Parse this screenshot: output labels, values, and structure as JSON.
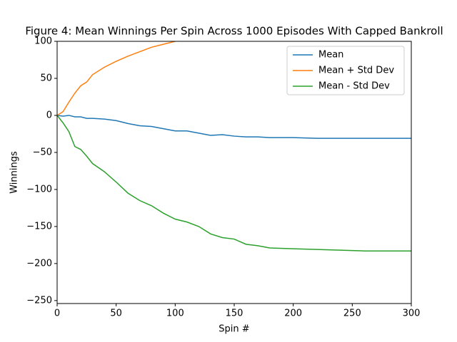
{
  "chart_data": {
    "type": "line",
    "title": "Figure 4: Mean Winnings Per Spin Across 1000 Episodes With Capped Bankroll",
    "x_label": "Spin #",
    "y_label": "Winnings",
    "x": [
      0,
      5,
      10,
      15,
      20,
      25,
      30,
      40,
      50,
      60,
      70,
      80,
      90,
      100,
      110,
      120,
      130,
      140,
      150,
      160,
      170,
      180,
      200,
      220,
      240,
      260,
      280,
      300
    ],
    "series": [
      {
        "name": "Mean",
        "color": "#1f77b4",
        "values": [
          0,
          -1,
          0,
          -2,
          -2,
          -4,
          -4,
          -5,
          -7,
          -11,
          -14,
          -15,
          -18,
          -21,
          -21,
          -24,
          -27,
          -26,
          -28,
          -29,
          -29,
          -30,
          -30,
          -31,
          -31,
          -31,
          -31,
          -31
        ]
      },
      {
        "name": "Mean + Std Dev",
        "color": "#ff7f0e",
        "values": [
          0,
          5,
          18,
          30,
          40,
          45,
          55,
          65,
          73,
          80,
          86,
          92,
          96,
          100,
          null,
          null,
          null,
          null,
          null,
          null,
          null,
          null,
          null,
          null,
          null,
          null,
          null,
          null
        ]
      },
      {
        "name": "Mean - Std Dev",
        "color": "#2ca02c",
        "values": [
          0,
          -10,
          -22,
          -42,
          -46,
          -55,
          -65,
          -76,
          -90,
          -105,
          -115,
          -122,
          -132,
          -140,
          -144,
          -150,
          -160,
          -165,
          -167,
          -174,
          -176,
          -179,
          -180,
          -181,
          -182,
          -183,
          -183,
          -183
        ]
      }
    ],
    "xlim": [
      0,
      300
    ],
    "xticks": [
      0,
      50,
      100,
      150,
      200,
      250,
      300
    ],
    "ylim": [
      -254,
      100
    ],
    "yticks": [
      {
        "value": -250,
        "label": "−250"
      },
      {
        "value": -200,
        "label": "−200"
      },
      {
        "value": -150,
        "label": "−150"
      },
      {
        "value": -100,
        "label": "−100"
      },
      {
        "value": -50,
        "label": "−50"
      },
      0,
      50,
      100
    ],
    "legend": "upper right",
    "grid": false
  }
}
